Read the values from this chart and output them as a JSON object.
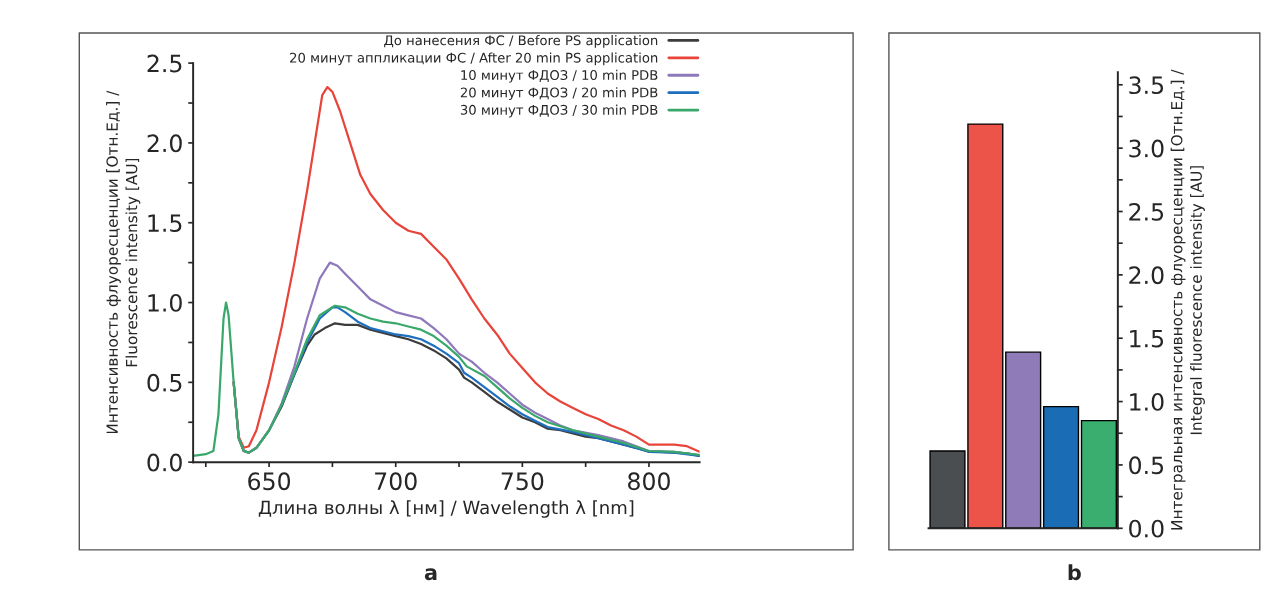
{
  "chart_data": [
    {
      "type": "line",
      "xlabel": "Длина волны λ [нм] / Wavelength λ [nm]",
      "ylabel": "Интенсивность флуоресценции [Отн.Ед.] /\nFluorescence intensity [AU]",
      "annotations": [
        "a"
      ],
      "legend": "top right",
      "xlim": [
        620,
        820
      ],
      "ylim": [
        0,
        2.5
      ],
      "xticks": [
        {
          "value": 625,
          "label": null
        },
        650,
        {
          "value": 675,
          "label": null
        },
        700,
        {
          "value": 725,
          "label": null
        },
        750,
        {
          "value": 775,
          "label": null
        },
        800
      ],
      "yticks": [
        {
          "value": 0,
          "label": "0.0"
        },
        {
          "value": 0.25,
          "label": null
        },
        {
          "value": 0.5,
          "label": "0.5"
        },
        {
          "value": 0.75,
          "label": null
        },
        {
          "value": 1,
          "label": "1.0"
        },
        {
          "value": 1.25,
          "label": null
        },
        {
          "value": 1.5,
          "label": "1.5"
        },
        {
          "value": 1.75,
          "label": null
        },
        {
          "value": 2,
          "label": "2.0"
        },
        {
          "value": 2.25,
          "label": null
        },
        {
          "value": 2.5,
          "label": "2.5"
        }
      ],
      "series": [
        {
          "name": "До нанесения ФС / Before PS application",
          "color": "#3c3c3c",
          "x": [
            636,
            638,
            640,
            642,
            645,
            650,
            655,
            660,
            665,
            668,
            672,
            676,
            680,
            685,
            690,
            695,
            700,
            705,
            710,
            715,
            720,
            725,
            727,
            730,
            735,
            740,
            745,
            750,
            755,
            760,
            765,
            770,
            775,
            780,
            785,
            790,
            795,
            800,
            805,
            810,
            815,
            820
          ],
          "values": [
            0.5,
            0.15,
            0.07,
            0.06,
            0.09,
            0.2,
            0.35,
            0.55,
            0.73,
            0.8,
            0.84,
            0.87,
            0.86,
            0.86,
            0.83,
            0.81,
            0.79,
            0.77,
            0.74,
            0.7,
            0.65,
            0.58,
            0.53,
            0.5,
            0.44,
            0.38,
            0.33,
            0.28,
            0.25,
            0.21,
            0.2,
            0.18,
            0.16,
            0.15,
            0.13,
            0.11,
            0.09,
            0.065,
            0.065,
            0.06,
            0.055,
            0.04
          ]
        },
        {
          "name": "20 минут аппликации ФС / After 20 min PS application",
          "color": "#e8443a",
          "x": [
            636,
            638,
            640,
            642,
            645,
            650,
            655,
            660,
            665,
            668,
            671,
            673,
            675,
            678,
            682,
            686,
            690,
            695,
            700,
            705,
            710,
            715,
            720,
            725,
            730,
            735,
            740,
            745,
            750,
            755,
            760,
            765,
            770,
            775,
            780,
            785,
            790,
            795,
            800,
            805,
            810,
            815,
            820
          ],
          "values": [
            0.5,
            0.16,
            0.09,
            0.1,
            0.2,
            0.5,
            0.85,
            1.25,
            1.7,
            2.0,
            2.3,
            2.35,
            2.32,
            2.2,
            2.0,
            1.8,
            1.68,
            1.58,
            1.5,
            1.45,
            1.43,
            1.35,
            1.27,
            1.15,
            1.02,
            0.9,
            0.8,
            0.68,
            0.59,
            0.5,
            0.43,
            0.38,
            0.34,
            0.3,
            0.27,
            0.23,
            0.2,
            0.16,
            0.11,
            0.11,
            0.11,
            0.1,
            0.065
          ]
        },
        {
          "name": "10 минут ФДОЗ / 10 min PDB",
          "color": "#8e79bb",
          "x": [
            636,
            638,
            640,
            642,
            645,
            650,
            655,
            660,
            665,
            670,
            674,
            677,
            680,
            685,
            690,
            695,
            700,
            705,
            710,
            715,
            720,
            725,
            730,
            735,
            740,
            745,
            750,
            755,
            760,
            765,
            770,
            780,
            790,
            800,
            810,
            820
          ],
          "values": [
            0.5,
            0.15,
            0.07,
            0.06,
            0.09,
            0.2,
            0.37,
            0.6,
            0.9,
            1.15,
            1.25,
            1.23,
            1.18,
            1.1,
            1.02,
            0.98,
            0.94,
            0.92,
            0.9,
            0.84,
            0.77,
            0.68,
            0.63,
            0.56,
            0.5,
            0.43,
            0.36,
            0.31,
            0.27,
            0.23,
            0.2,
            0.17,
            0.13,
            0.07,
            0.065,
            0.045
          ]
        },
        {
          "name": "20 минут ФДОЗ / 20 min PDB",
          "color": "#1f6fbf",
          "x": [
            655,
            660,
            665,
            670,
            675,
            677,
            680,
            685,
            690,
            695,
            700,
            705,
            710,
            715,
            720,
            725,
            727,
            730,
            735,
            740,
            745,
            750,
            755,
            760,
            770,
            780,
            790,
            800,
            810,
            820
          ],
          "values": [
            0.36,
            0.55,
            0.75,
            0.9,
            0.97,
            0.97,
            0.94,
            0.88,
            0.84,
            0.82,
            0.8,
            0.79,
            0.77,
            0.73,
            0.68,
            0.62,
            0.56,
            0.53,
            0.47,
            0.41,
            0.35,
            0.3,
            0.26,
            0.22,
            0.19,
            0.15,
            0.11,
            0.065,
            0.06,
            0.04
          ]
        },
        {
          "name": "30 минут ФДОЗ / 30 min PDB",
          "color": "#3aa86a",
          "x": [
            620,
            625,
            628,
            630,
            632,
            633,
            634,
            636,
            638,
            640,
            642,
            645,
            650,
            655,
            660,
            665,
            670,
            676,
            680,
            685,
            690,
            695,
            700,
            705,
            710,
            715,
            720,
            725,
            728,
            735,
            740,
            745,
            750,
            755,
            760,
            770,
            780,
            790,
            800,
            810,
            820
          ],
          "values": [
            0.04,
            0.05,
            0.07,
            0.3,
            0.9,
            1.0,
            0.92,
            0.5,
            0.15,
            0.07,
            0.06,
            0.09,
            0.2,
            0.36,
            0.56,
            0.77,
            0.92,
            0.98,
            0.97,
            0.93,
            0.9,
            0.88,
            0.87,
            0.85,
            0.83,
            0.79,
            0.73,
            0.66,
            0.6,
            0.54,
            0.47,
            0.4,
            0.34,
            0.29,
            0.25,
            0.2,
            0.16,
            0.12,
            0.07,
            0.065,
            0.045
          ]
        }
      ]
    },
    {
      "type": "bar",
      "ylabel": "Интегральная интенсивность флуоресценции [Отн.Ед.] /\nIntegral fluorescence intensity [AU]",
      "annotations": [
        "b"
      ],
      "categories": [
        null,
        null,
        null,
        null,
        null
      ],
      "values": [
        0.61,
        3.19,
        1.39,
        0.96,
        0.85
      ],
      "colors": [
        "#4a4e50",
        "#ec5449",
        "#8e7bb8",
        "#1a6db5",
        "#3aae6e"
      ],
      "ylim": [
        0,
        3.6
      ],
      "yticks": [
        {
          "value": 0,
          "label": "0.0"
        },
        {
          "value": 0.25,
          "label": null
        },
        {
          "value": 0.5,
          "label": "0.5"
        },
        {
          "value": 0.75,
          "label": null
        },
        {
          "value": 1,
          "label": "1.0"
        },
        {
          "value": 1.25,
          "label": null
        },
        {
          "value": 1.5,
          "label": "1.5"
        },
        {
          "value": 1.75,
          "label": null
        },
        {
          "value": 2,
          "label": "2.0"
        },
        {
          "value": 2.25,
          "label": null
        },
        {
          "value": 2.5,
          "label": "2.5"
        },
        {
          "value": 2.75,
          "label": null
        },
        {
          "value": 3,
          "label": "3.0"
        },
        {
          "value": 3.25,
          "label": null
        },
        {
          "value": 3.5,
          "label": "3.5"
        }
      ],
      "tick_labels": "y"
    }
  ]
}
